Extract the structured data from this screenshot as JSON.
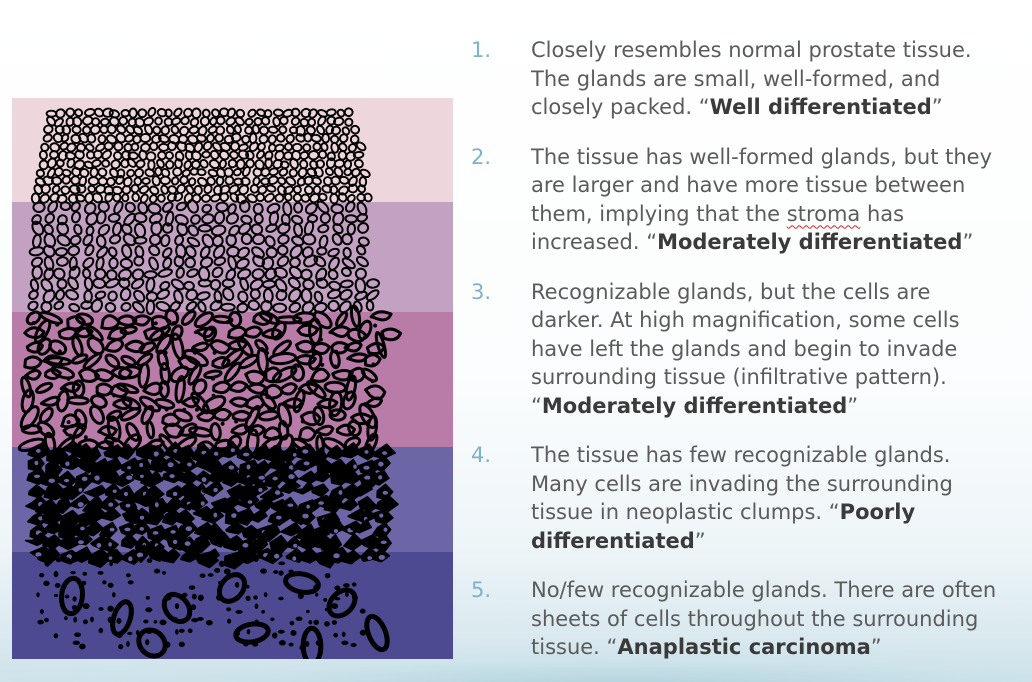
{
  "bands": [
    {
      "name": "band-1",
      "color": "#eed7dc"
    },
    {
      "name": "band-2",
      "color": "#c3a1c2"
    },
    {
      "name": "band-3",
      "color": "#b97ba7"
    },
    {
      "name": "band-4",
      "color": "#6c65a6"
    },
    {
      "name": "band-5",
      "color": "#4d4a92"
    }
  ],
  "list": {
    "items": [
      {
        "number": "1.",
        "lines": [
          "Closely resembles normal prostate tissue.",
          "The glands are small, well-formed, and"
        ],
        "last_pre": "closely packed. “",
        "grade": "Well differentiated",
        "close": "”"
      },
      {
        "number": "2.",
        "lines": [
          "The tissue has well-formed glands, but they",
          "are larger and have more tissue between"
        ],
        "line3_pre": "them, implying that the ",
        "line3_word": "stroma",
        "line3_post": " has",
        "last_pre": "increased. “",
        "grade": "Moderately differentiated",
        "close": "”"
      },
      {
        "number": "3.",
        "lines": [
          "Recognizable glands, but the cells are",
          "darker. At high magnification, some cells",
          "have left the glands and begin to invade",
          "surrounding tissue (infiltrative pattern)."
        ],
        "last_pre": "“",
        "grade": "Moderately differentiated",
        "close": "”"
      },
      {
        "number": "4.",
        "lines": [
          "The tissue has few recognizable glands.",
          "Many cells are invading the surrounding"
        ],
        "line3_pre": "tissue in neoplastic clumps. “",
        "grade_part1": "Poorly",
        "grade_part2": "differentiated",
        "close": "”"
      },
      {
        "number": "5.",
        "lines": [
          "No/few recognizable glands. There are often",
          "sheets of cells throughout the surrounding"
        ],
        "last_pre": "tissue. “",
        "grade": "Anaplastic carcinoma",
        "close": "”"
      }
    ]
  }
}
